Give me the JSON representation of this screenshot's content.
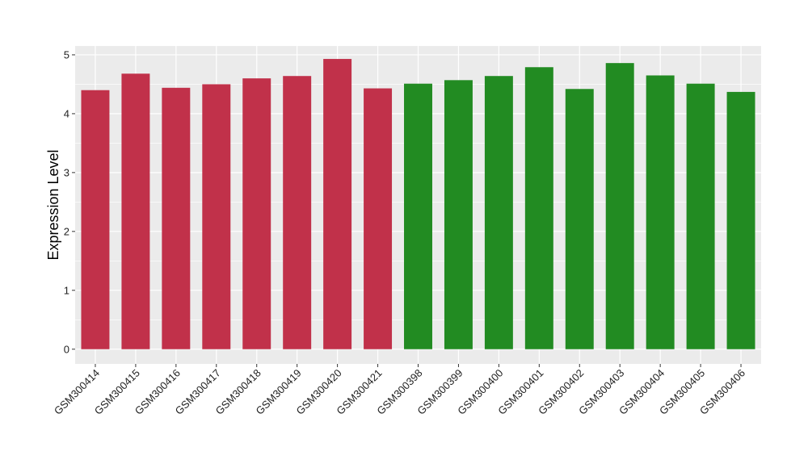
{
  "chart_data": {
    "type": "bar",
    "title": "",
    "xlabel": "",
    "ylabel": "Expression Level",
    "ylim": [
      -0.25,
      5.15
    ],
    "yticks": [
      0,
      1,
      2,
      3,
      4,
      5
    ],
    "grid": true,
    "legend": "none",
    "categories": [
      "GSM300414",
      "GSM300415",
      "GSM300416",
      "GSM300417",
      "GSM300418",
      "GSM300419",
      "GSM300420",
      "GSM300421",
      "GSM300398",
      "GSM300399",
      "GSM300400",
      "GSM300401",
      "GSM300402",
      "GSM300403",
      "GSM300404",
      "GSM300405",
      "GSM300406"
    ],
    "values": [
      4.4,
      4.68,
      4.44,
      4.5,
      4.6,
      4.64,
      4.93,
      4.43,
      4.51,
      4.57,
      4.64,
      4.79,
      4.42,
      4.86,
      4.65,
      4.51,
      4.37
    ],
    "groups": [
      "a",
      "a",
      "a",
      "a",
      "a",
      "a",
      "a",
      "a",
      "b",
      "b",
      "b",
      "b",
      "b",
      "b",
      "b",
      "b",
      "b"
    ],
    "colors": {
      "a": "#C1314A",
      "b": "#228B22"
    },
    "panel_color": "#EBEBEB",
    "grid_color": "#FFFFFF"
  }
}
